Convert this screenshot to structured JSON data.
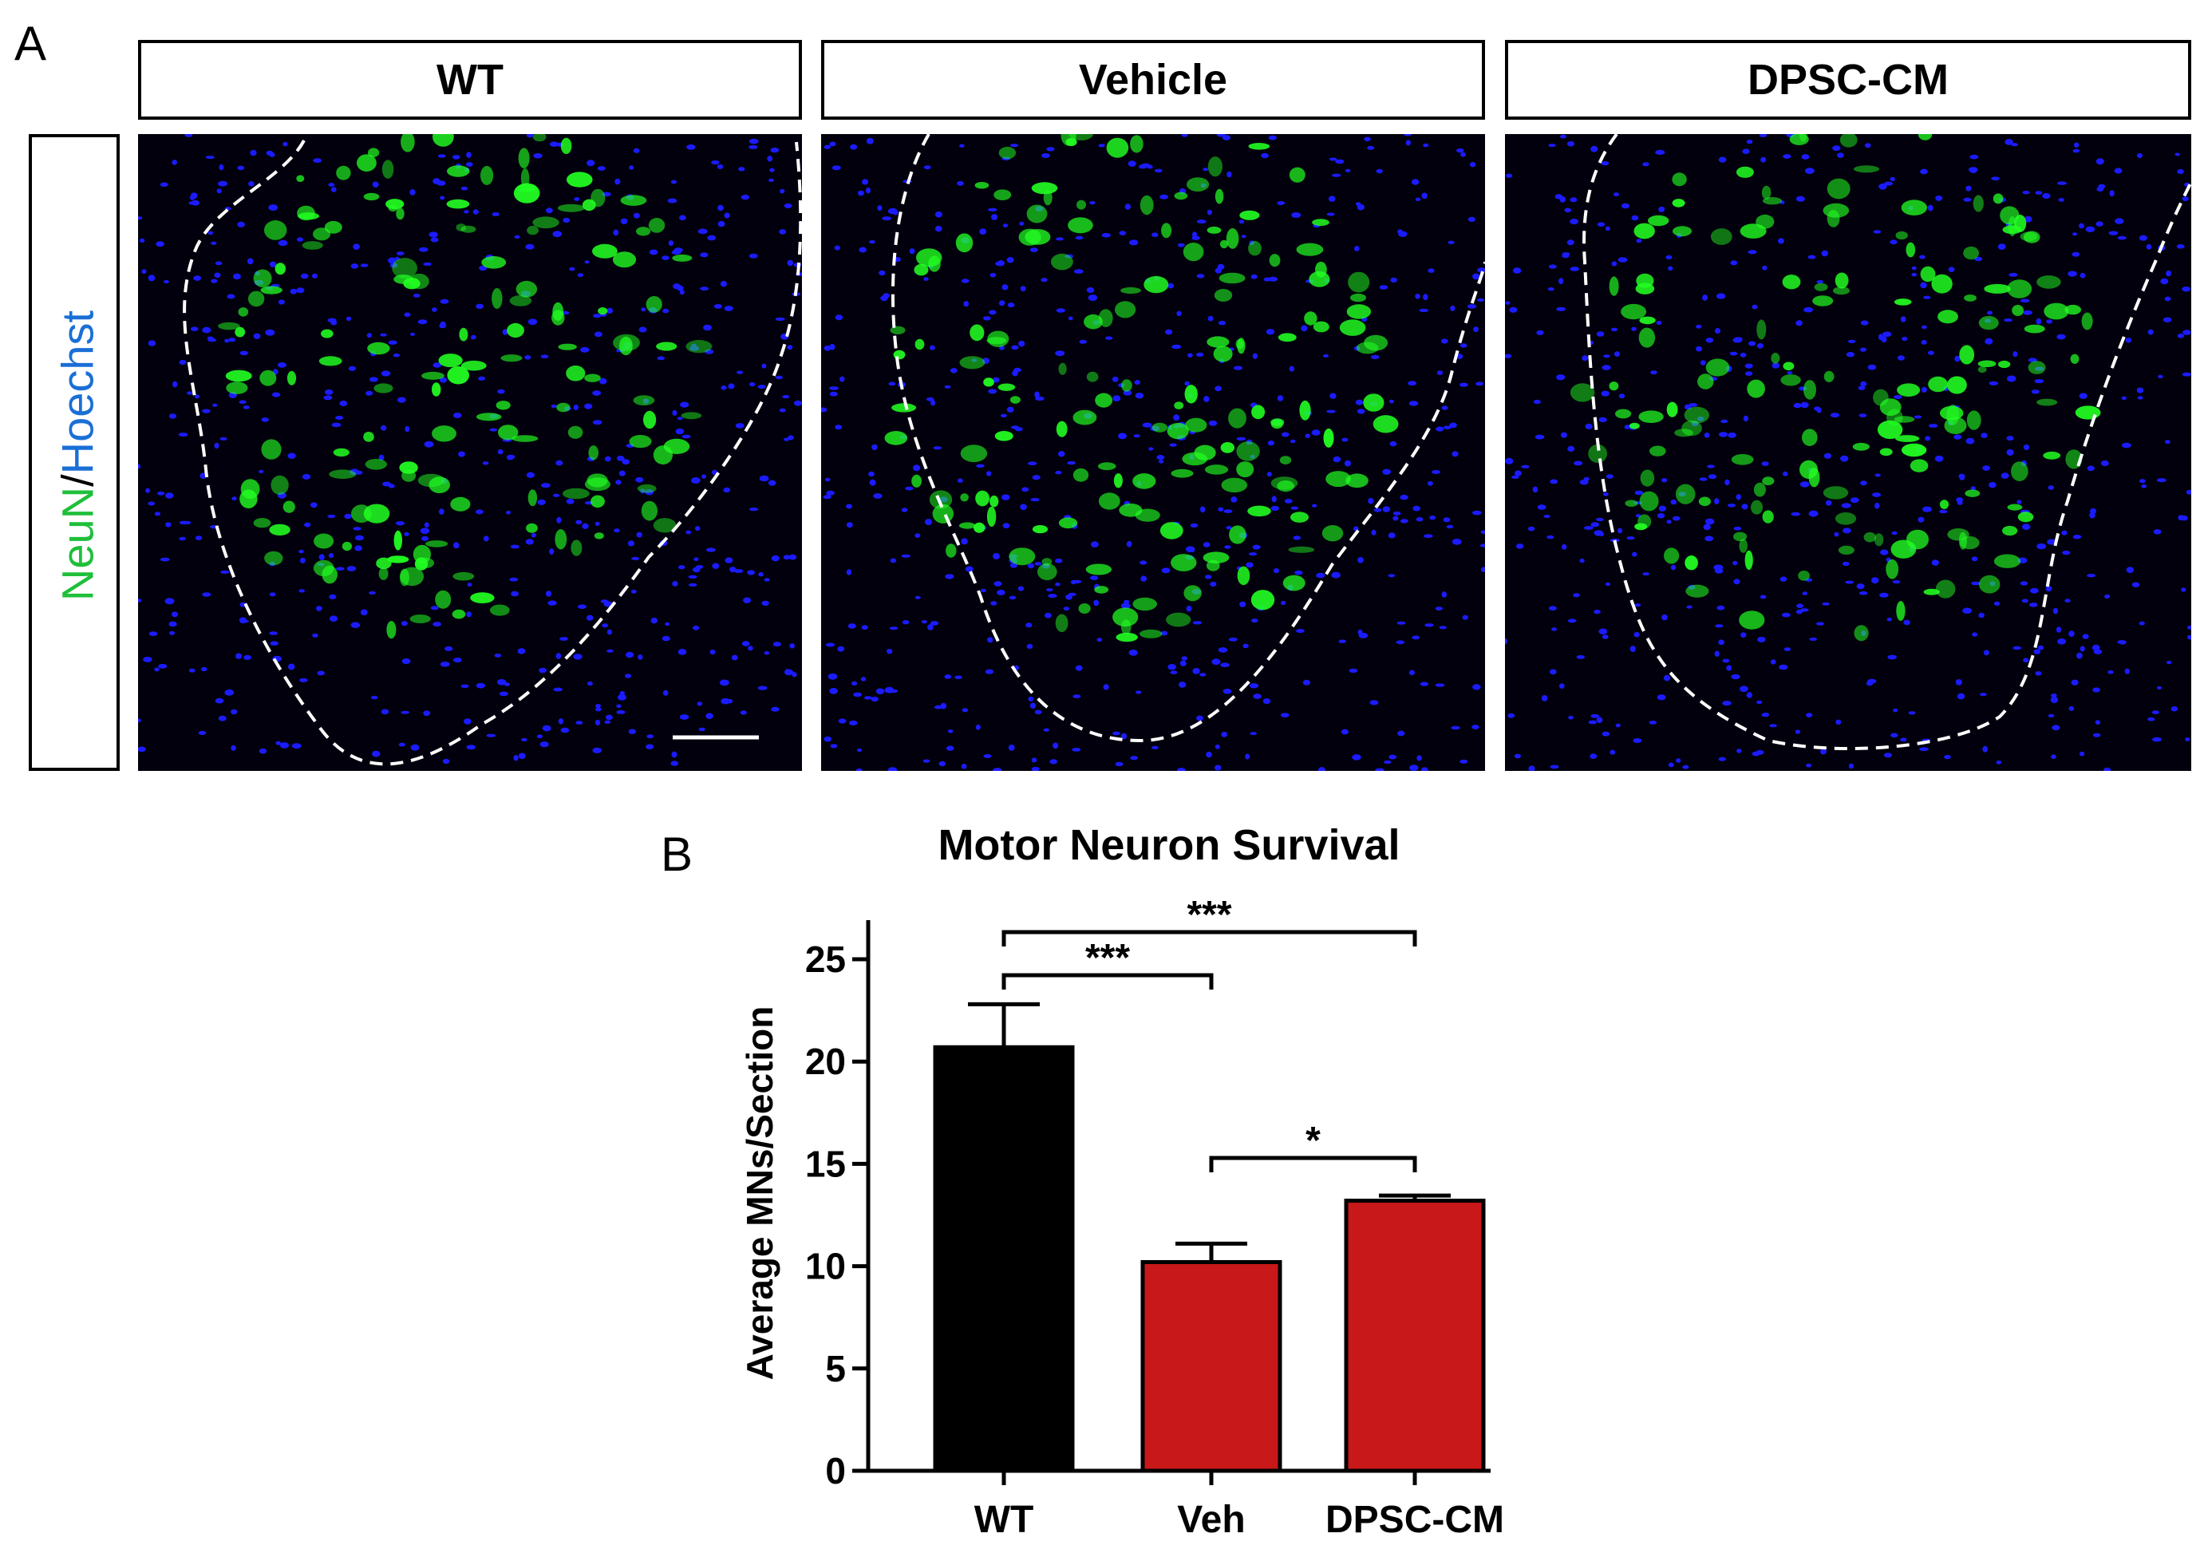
{
  "panel_a": {
    "letter": "A",
    "columns": [
      "WT",
      "Vehicle",
      "DPSC-CM"
    ],
    "stain_label": {
      "part1": "NeuN",
      "separator": "/",
      "part2": "Hoechst"
    },
    "colors": {
      "neun": "#1fbf3a",
      "hoechst": "#1a6fd6",
      "nuclei": "#1b1bff",
      "neurons": "#22ff22",
      "background": "#02000c"
    }
  },
  "panel_b": {
    "letter": "B"
  },
  "chart_data": {
    "type": "bar",
    "title": "Motor Neuron Survival",
    "xlabel": "",
    "ylabel": "Average MNs/Section",
    "categories": [
      "WT",
      "Veh",
      "DPSC-CM"
    ],
    "values": [
      20.7,
      10.2,
      13.2
    ],
    "errors": [
      2.1,
      0.9,
      0.25
    ],
    "bar_colors": [
      "#000000",
      "#c8181a",
      "#c8181a"
    ],
    "ylim": [
      0,
      25
    ],
    "yticks": [
      0,
      5,
      10,
      15,
      20,
      25
    ],
    "significance": [
      {
        "from": "WT",
        "to": "DPSC-CM",
        "label": "***"
      },
      {
        "from": "WT",
        "to": "Veh",
        "label": "***"
      },
      {
        "from": "Veh",
        "to": "DPSC-CM",
        "label": "*"
      }
    ]
  }
}
